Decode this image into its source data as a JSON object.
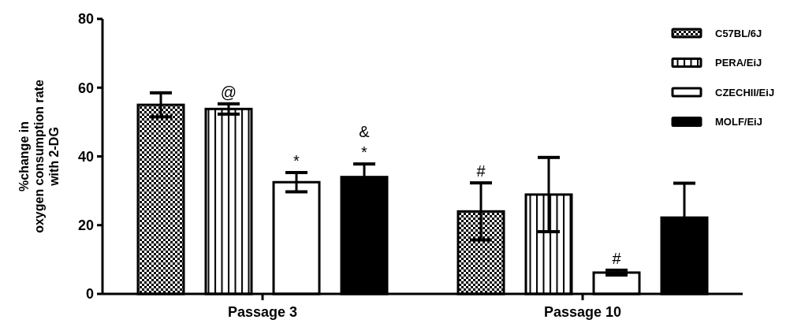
{
  "chart_data": {
    "type": "bar",
    "ylabel": "%change in\noxygen consumption rate\nwith 2-DG",
    "categories": [
      "Passage 3",
      "Passage 10"
    ],
    "series": [
      {
        "name": "C57BL/6J",
        "color": "#000000",
        "values": [
          55,
          24
        ],
        "errors": [
          3.5,
          8.3
        ],
        "value_labels": [
          null,
          "#"
        ]
      },
      {
        "name": "PERA/EiJ",
        "color": "#000000",
        "values": [
          53.8,
          28.9
        ],
        "errors": [
          1.5,
          10.8
        ],
        "value_labels": [
          "@",
          null
        ]
      },
      {
        "name": "CZECHII/EiJ",
        "color": "#ffffff",
        "values": [
          32.5,
          6.2
        ],
        "errors": [
          2.8,
          0.7
        ],
        "value_labels": [
          "*",
          "#"
        ]
      },
      {
        "name": "MOLF/EiJ",
        "color": "#000000",
        "values": [
          34,
          22.2
        ],
        "errors": [
          3.8,
          10
        ],
        "value_labels": [
          "&\n*",
          null
        ]
      }
    ],
    "ylim": [
      0,
      80
    ],
    "yticks": [
      0,
      20,
      40,
      60,
      80
    ],
    "grid": false,
    "legend": "top right"
  }
}
